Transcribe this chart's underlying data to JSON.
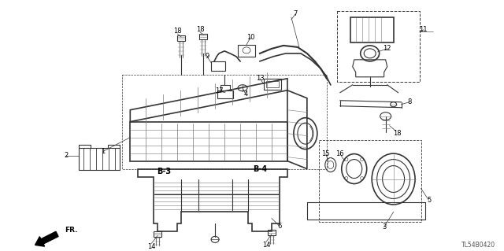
{
  "background_color": "#ffffff",
  "diagram_code": "TL54B0420",
  "line_color": "#333333",
  "mgray": "#777777",
  "figsize": [
    6.4,
    3.19
  ],
  "dpi": 100
}
